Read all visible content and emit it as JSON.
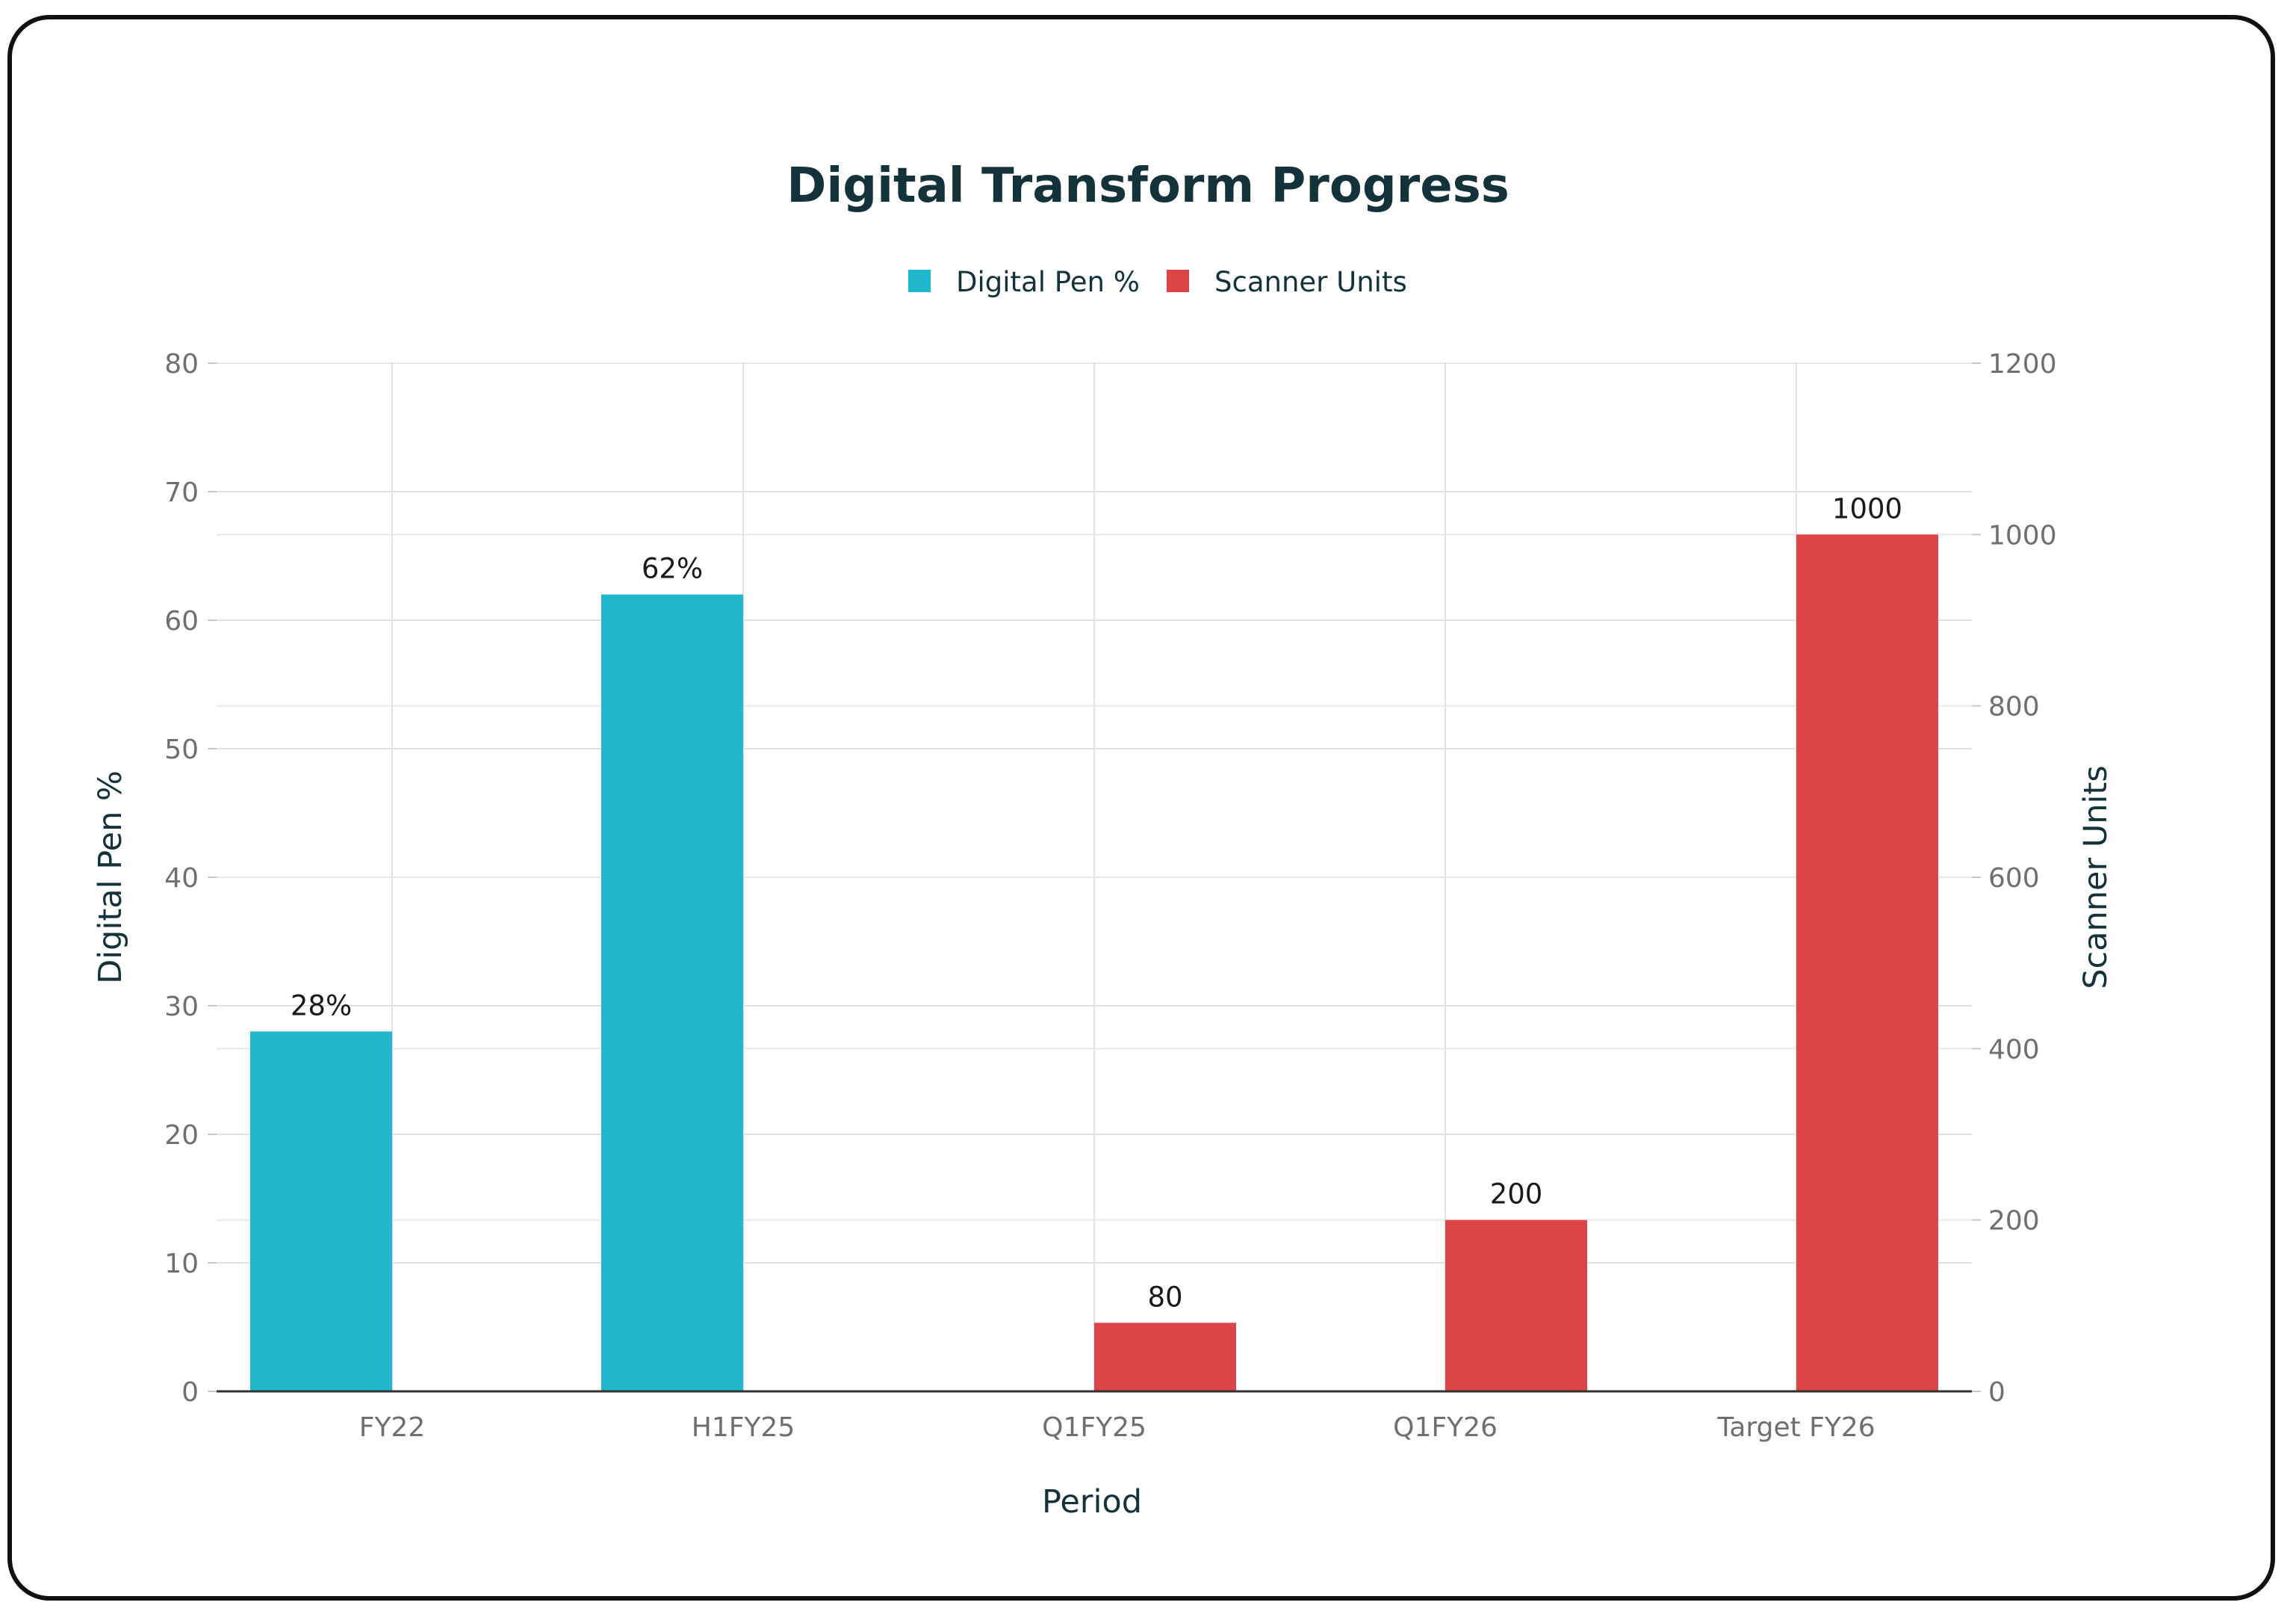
{
  "chart_data": {
    "type": "bar",
    "title": "Digital Transform Progress",
    "xlabel": "Period",
    "ylabel": "Digital Pen %",
    "y2label": "Scanner Units",
    "categories": [
      "FY22",
      "H1FY25",
      "Q1FY25",
      "Q1FY26",
      "Target FY26"
    ],
    "ylim": [
      0,
      80
    ],
    "y2lim": [
      0,
      1200
    ],
    "yticks": [
      0,
      10,
      20,
      30,
      40,
      50,
      60,
      70,
      80
    ],
    "y2ticks": [
      0,
      200,
      400,
      600,
      800,
      1000,
      1200
    ],
    "grid": true,
    "legend_position": "top-center",
    "series": [
      {
        "name": "Digital Pen %",
        "color": "#20b8cc",
        "axis": "left",
        "values": [
          28,
          62,
          null,
          null,
          null
        ],
        "labels": [
          "28%",
          "62%",
          "",
          "",
          ""
        ]
      },
      {
        "name": "Scanner Units",
        "color": "#dc4446",
        "axis": "right",
        "values": [
          null,
          null,
          80,
          200,
          1000
        ],
        "labels": [
          "",
          "",
          "80",
          "200",
          "1000"
        ]
      }
    ]
  }
}
